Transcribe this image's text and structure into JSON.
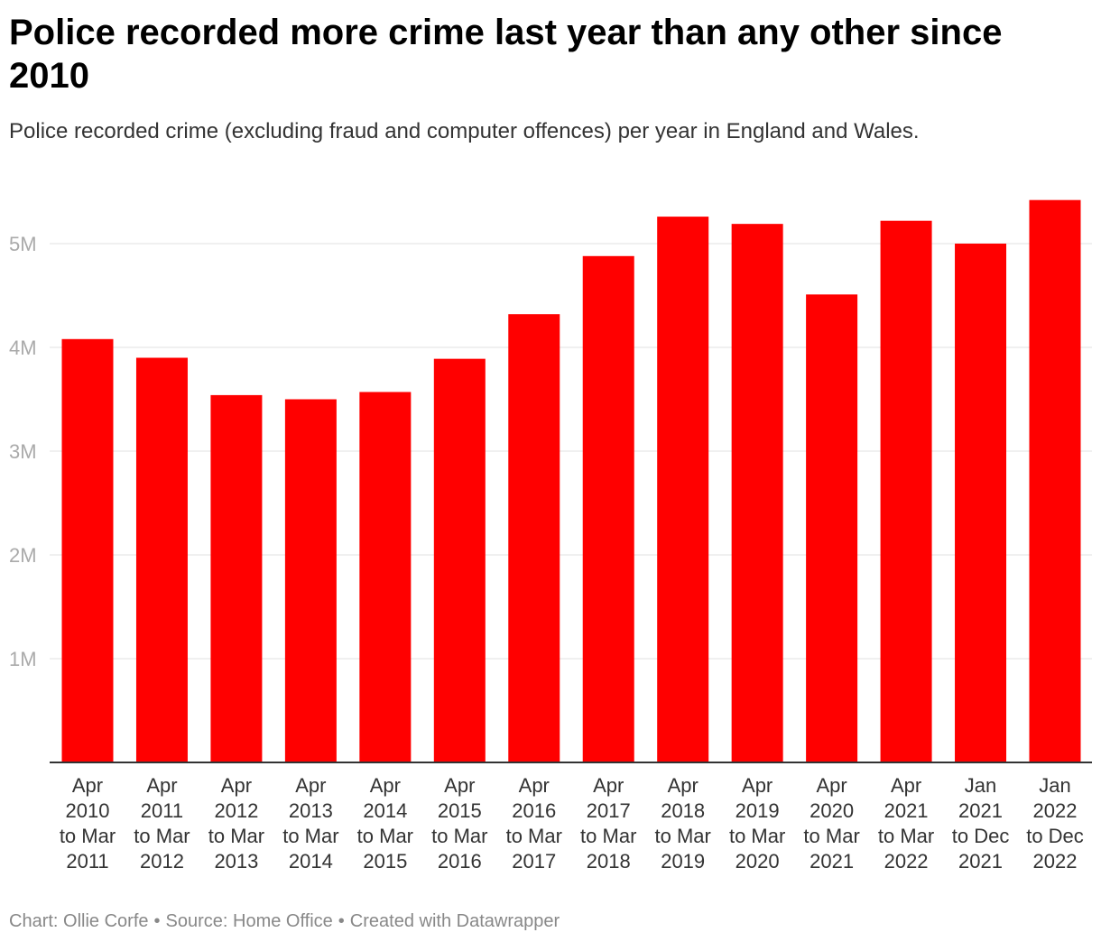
{
  "title": "Police recorded more crime last year than any other since 2010",
  "subtitle": "Police recorded crime (excluding fraud and computer offences) per year in England and Wales.",
  "footer": {
    "chart_credit": "Chart: Ollie Corfe",
    "source": "Source: Home Office",
    "tool": "Created with Datawrapper",
    "separator": "•"
  },
  "colors": {
    "bar": "#ff0000",
    "gridline": "#e0e0e0",
    "baseline": "#333333"
  },
  "chart_data": {
    "type": "bar",
    "title": "Police recorded more crime last year than any other since 2010",
    "subtitle": "Police recorded crime (excluding fraud and computer offences) per year in England and Wales.",
    "xlabel": "",
    "ylabel": "",
    "ylim": [
      0,
      5500000
    ],
    "yticks": [
      1000000,
      2000000,
      3000000,
      4000000,
      5000000
    ],
    "ytick_labels": [
      "1M",
      "2M",
      "3M",
      "4M",
      "5M"
    ],
    "grid": true,
    "categories": [
      [
        "Apr",
        "2010",
        "to Mar",
        "2011"
      ],
      [
        "Apr",
        "2011",
        "to Mar",
        "2012"
      ],
      [
        "Apr",
        "2012",
        "to Mar",
        "2013"
      ],
      [
        "Apr",
        "2013",
        "to Mar",
        "2014"
      ],
      [
        "Apr",
        "2014",
        "to Mar",
        "2015"
      ],
      [
        "Apr",
        "2015",
        "to Mar",
        "2016"
      ],
      [
        "Apr",
        "2016",
        "to Mar",
        "2017"
      ],
      [
        "Apr",
        "2017",
        "to Mar",
        "2018"
      ],
      [
        "Apr",
        "2018",
        "to Mar",
        "2019"
      ],
      [
        "Apr",
        "2019",
        "to Mar",
        "2020"
      ],
      [
        "Apr",
        "2020",
        "to Mar",
        "2021"
      ],
      [
        "Apr",
        "2021",
        "to Mar",
        "2022"
      ],
      [
        "Jan",
        "2021",
        "to Dec",
        "2021"
      ],
      [
        "Jan",
        "2022",
        "to Dec",
        "2022"
      ]
    ],
    "values": [
      4080000,
      3900000,
      3540000,
      3500000,
      3570000,
      3890000,
      4320000,
      4880000,
      5260000,
      5190000,
      4510000,
      5220000,
      5000000,
      5420000
    ]
  }
}
